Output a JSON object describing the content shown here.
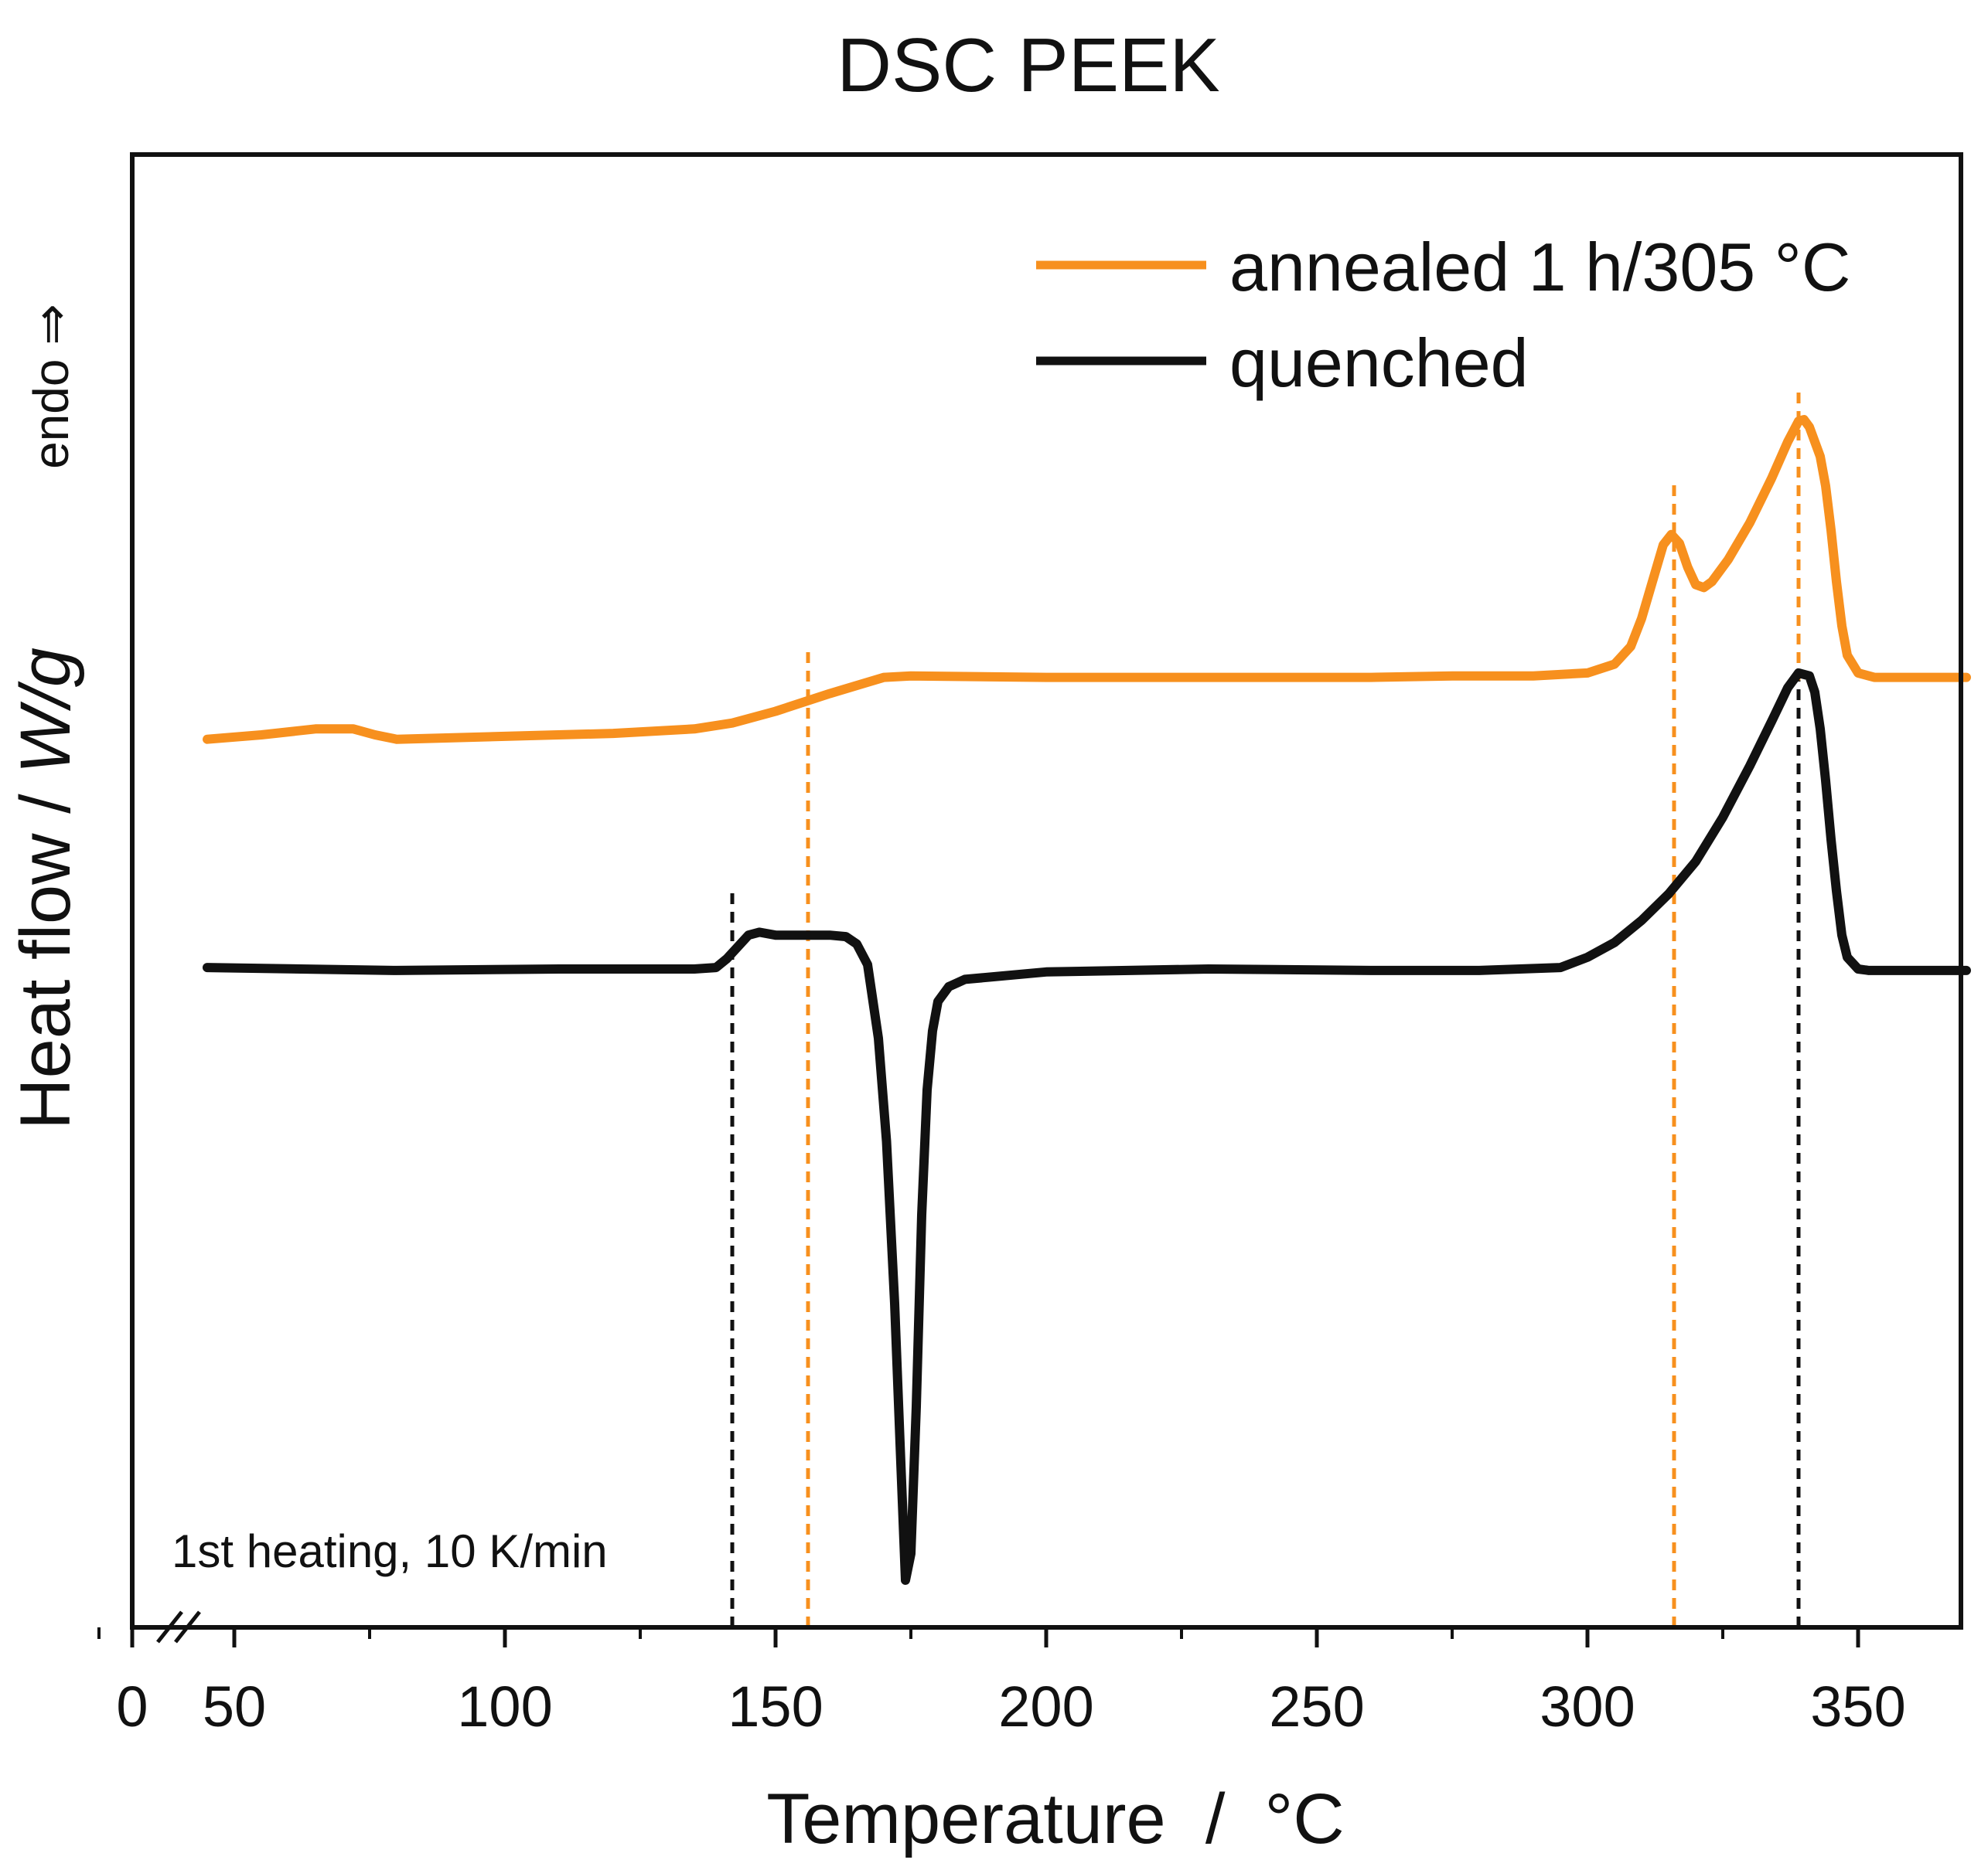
{
  "chart_data": {
    "type": "line",
    "title": "DSC PEEK",
    "xlabel": "Temperature  /  °C",
    "ylabel_prefix": "Heat flow / ",
    "ylabel_unit": "W/g",
    "endo_label": "endo ⇒",
    "annotation": "1st heating, 10 K/min",
    "xlim": [
      0,
      370
    ],
    "ylim": [
      0,
      100
    ],
    "axis_break_after": 10,
    "x_tick_labels": [
      "0",
      "50",
      "100",
      "150",
      "200",
      "250",
      "300",
      "350"
    ],
    "x_major_ticks": [
      0,
      50,
      100,
      150,
      200,
      250,
      300,
      350
    ],
    "x_minor_ticks": [
      25,
      75,
      125,
      175,
      225,
      275,
      325
    ],
    "y_ticks_shown": false,
    "legend_position": "top-right",
    "series": [
      {
        "name": "annealed 1 h/305 °C",
        "color": "#f7901e",
        "points": [
          [
            45,
            60.3
          ],
          [
            55,
            60.6
          ],
          [
            65,
            61.0
          ],
          [
            72,
            61.0
          ],
          [
            76,
            60.6
          ],
          [
            80,
            60.3
          ],
          [
            100,
            60.5
          ],
          [
            120,
            60.7
          ],
          [
            135,
            61.0
          ],
          [
            142,
            61.4
          ],
          [
            150,
            62.2
          ],
          [
            160,
            63.4
          ],
          [
            170,
            64.5
          ],
          [
            175,
            64.6
          ],
          [
            200,
            64.5
          ],
          [
            230,
            64.5
          ],
          [
            260,
            64.5
          ],
          [
            275,
            64.6
          ],
          [
            290,
            64.6
          ],
          [
            300,
            64.8
          ],
          [
            305,
            65.4
          ],
          [
            308,
            66.6
          ],
          [
            310,
            68.5
          ],
          [
            312,
            71.0
          ],
          [
            314,
            73.5
          ],
          [
            315.5,
            74.2
          ],
          [
            317,
            73.6
          ],
          [
            318.5,
            72.0
          ],
          [
            320,
            70.8
          ],
          [
            321.5,
            70.6
          ],
          [
            323,
            71.0
          ],
          [
            326,
            72.5
          ],
          [
            330,
            75.0
          ],
          [
            334,
            78.0
          ],
          [
            337,
            80.5
          ],
          [
            339,
            81.9
          ],
          [
            340,
            82.0
          ],
          [
            341,
            81.5
          ],
          [
            343,
            79.5
          ],
          [
            344,
            77.5
          ],
          [
            345,
            74.5
          ],
          [
            346,
            71.0
          ],
          [
            347,
            68.0
          ],
          [
            348,
            66.0
          ],
          [
            350,
            64.8
          ],
          [
            353,
            64.5
          ],
          [
            370,
            64.5
          ]
        ]
      },
      {
        "name": "quenched",
        "color": "#111111",
        "points": [
          [
            45,
            44.8
          ],
          [
            80,
            44.6
          ],
          [
            110,
            44.7
          ],
          [
            135,
            44.7
          ],
          [
            139,
            44.8
          ],
          [
            141,
            45.4
          ],
          [
            143,
            46.2
          ],
          [
            145,
            47.0
          ],
          [
            147,
            47.2
          ],
          [
            150,
            47.0
          ],
          [
            160,
            47.0
          ],
          [
            163,
            46.9
          ],
          [
            165,
            46.4
          ],
          [
            167,
            45.0
          ],
          [
            169,
            40.0
          ],
          [
            170.5,
            33.0
          ],
          [
            172,
            22.0
          ],
          [
            173,
            12.5
          ],
          [
            174,
            3.2
          ],
          [
            175,
            5.0
          ],
          [
            176,
            15.0
          ],
          [
            177,
            28.0
          ],
          [
            178,
            36.5
          ],
          [
            179,
            40.5
          ],
          [
            180,
            42.5
          ],
          [
            182,
            43.5
          ],
          [
            185,
            44.0
          ],
          [
            200,
            44.5
          ],
          [
            230,
            44.7
          ],
          [
            260,
            44.6
          ],
          [
            280,
            44.6
          ],
          [
            295,
            44.8
          ],
          [
            300,
            45.5
          ],
          [
            305,
            46.5
          ],
          [
            310,
            48.0
          ],
          [
            315,
            49.8
          ],
          [
            320,
            52.0
          ],
          [
            325,
            55.0
          ],
          [
            330,
            58.5
          ],
          [
            334,
            61.5
          ],
          [
            337,
            63.8
          ],
          [
            339,
            64.8
          ],
          [
            341,
            64.6
          ],
          [
            342,
            63.5
          ],
          [
            343,
            61.0
          ],
          [
            344,
            57.5
          ],
          [
            345,
            53.5
          ],
          [
            346,
            50.0
          ],
          [
            347,
            47.0
          ],
          [
            348,
            45.5
          ],
          [
            350,
            44.7
          ],
          [
            352,
            44.6
          ],
          [
            370,
            44.6
          ]
        ]
      }
    ],
    "marker_lines": [
      {
        "x": 142,
        "color": "#111111",
        "y_top": 50.2
      },
      {
        "x": 156,
        "color": "#f7901e",
        "y_top": 66.7
      },
      {
        "x": 316,
        "color": "#f7901e",
        "y_top": 77.9
      },
      {
        "x": 339,
        "color": "#f7901e",
        "y_top": 83.9
      },
      {
        "x": 339,
        "color": "#111111",
        "y_top": 64.3
      }
    ]
  }
}
